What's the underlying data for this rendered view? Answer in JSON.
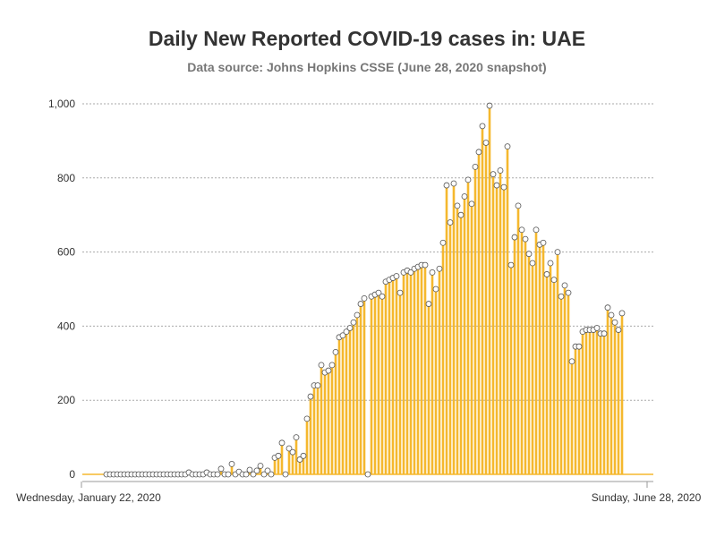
{
  "chart_data": {
    "type": "bar",
    "title": "Daily New Reported COVID-19 cases in: UAE",
    "subtitle": "Data source: Johns Hopkins CSSE (June 28, 2020 snapshot)",
    "xlabel": "",
    "ylabel": "",
    "x_range": [
      "2020-01-22",
      "2020-06-28"
    ],
    "x_tick_labels": [
      "Wednesday, January 22, 2020",
      "Sunday, June 28, 2020"
    ],
    "y_ticks": [
      0,
      200,
      400,
      600,
      800,
      1000
    ],
    "y_tick_labels": [
      "0",
      "200",
      "400",
      "600",
      "800",
      "1,000"
    ],
    "ylim": [
      0,
      1000
    ],
    "grid": "horizontal dotted",
    "legend": "none",
    "colors": {
      "bar": "#f5b82e",
      "marker_fill": "#ffffff",
      "marker_stroke": "#555555",
      "axis": "#999999",
      "grid": "#aaaaaa"
    },
    "first_date": "2020-01-29",
    "values": [
      0,
      0,
      0,
      0,
      0,
      0,
      0,
      0,
      0,
      0,
      0,
      0,
      0,
      0,
      0,
      0,
      0,
      0,
      0,
      0,
      0,
      0,
      0,
      5,
      0,
      0,
      0,
      0,
      5,
      0,
      0,
      0,
      15,
      0,
      0,
      28,
      0,
      7,
      0,
      0,
      12,
      0,
      10,
      23,
      0,
      10,
      0,
      45,
      50,
      85,
      0,
      70,
      60,
      100,
      40,
      50,
      150,
      210,
      240,
      240,
      295,
      275,
      280,
      295,
      330,
      370,
      375,
      385,
      395,
      410,
      430,
      460,
      475,
      0,
      480,
      485,
      490,
      480,
      520,
      525,
      530,
      535,
      490,
      545,
      550,
      545,
      555,
      560,
      565,
      565,
      460,
      545,
      500,
      555,
      625,
      780,
      680,
      785,
      725,
      700,
      750,
      795,
      730,
      830,
      870,
      940,
      895,
      995,
      810,
      780,
      820,
      775,
      885,
      565,
      640,
      725,
      660,
      635,
      595,
      570,
      660,
      620,
      625,
      540,
      570,
      525,
      600,
      480,
      510,
      490,
      305,
      345,
      345,
      385,
      390,
      390,
      390,
      395,
      380,
      380,
      450,
      430,
      410,
      390,
      435
    ]
  }
}
